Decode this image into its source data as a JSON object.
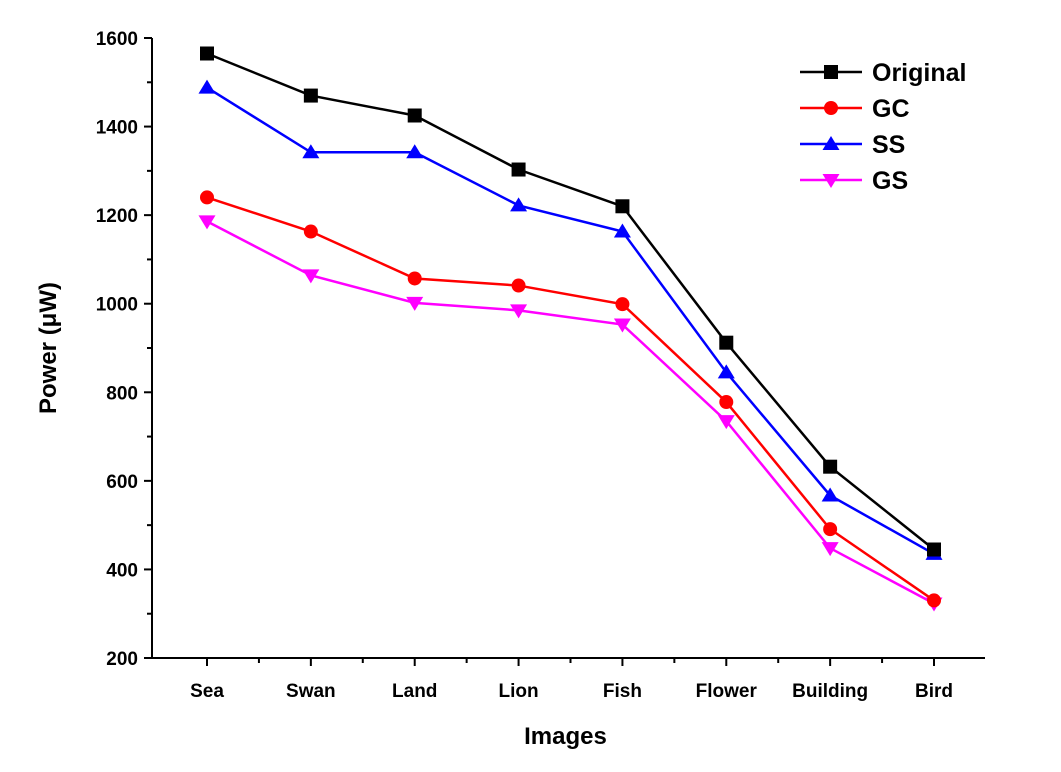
{
  "chart_data": {
    "type": "line",
    "title": "",
    "xlabel": "Images",
    "ylabel": "Power (μW)",
    "categories": [
      "Sea",
      "Swan",
      "Land",
      "Lion",
      "Fish",
      "Flower",
      "Building",
      "Bird"
    ],
    "ylim": [
      200,
      1600
    ],
    "yticks": [
      200,
      400,
      600,
      800,
      1000,
      1200,
      1400,
      1600
    ],
    "grid": false,
    "legend_position": "top-right",
    "series": [
      {
        "name": "Original",
        "color": "#000000",
        "marker": "square",
        "values": [
          1565,
          1470,
          1425,
          1303,
          1220,
          912,
          632,
          445
        ]
      },
      {
        "name": "GC",
        "color": "#ff0000",
        "marker": "circle",
        "values": [
          1240,
          1163,
          1057,
          1041,
          999,
          778,
          491,
          330
        ]
      },
      {
        "name": "SS",
        "color": "#0000ff",
        "marker": "triangle-up",
        "values": [
          1488,
          1342,
          1342,
          1222,
          1163,
          845,
          567,
          435
        ]
      },
      {
        "name": "GS",
        "color": "#ff00ff",
        "marker": "triangle-down",
        "values": [
          1186,
          1064,
          1002,
          985,
          953,
          735,
          448,
          323
        ]
      }
    ]
  }
}
